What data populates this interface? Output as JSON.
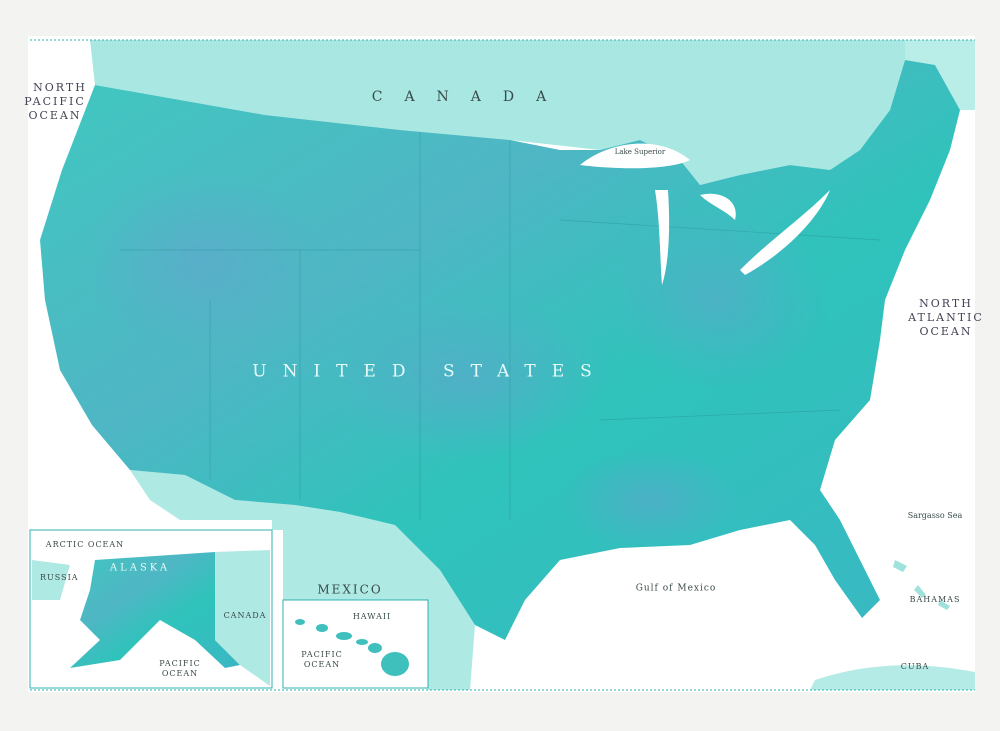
{
  "map": {
    "country_title": "UNITED STATES",
    "neighbors": {
      "canada": "CANADA",
      "mexico": "MEXICO",
      "bahamas": "BAHAMAS",
      "cuba": "CUBA"
    },
    "water": {
      "north_pacific": [
        "NORTH",
        "PACIFIC",
        "OCEAN"
      ],
      "north_atlantic": [
        "NORTH",
        "ATLANTIC",
        "OCEAN"
      ],
      "gulf": "Gulf of Mexico",
      "sargasso": "Sargasso Sea",
      "lake_superior": "Lake Superior"
    },
    "alaska_inset": {
      "title": "ALASKA",
      "arctic": "ARCTIC OCEAN",
      "russia": "RUSSIA",
      "canada": "CANADA",
      "pacific": [
        "PACIFIC",
        "OCEAN"
      ]
    },
    "hawaii_inset": {
      "title": "HAWAII",
      "pacific": [
        "PACIFIC",
        "OCEAN"
      ]
    }
  }
}
